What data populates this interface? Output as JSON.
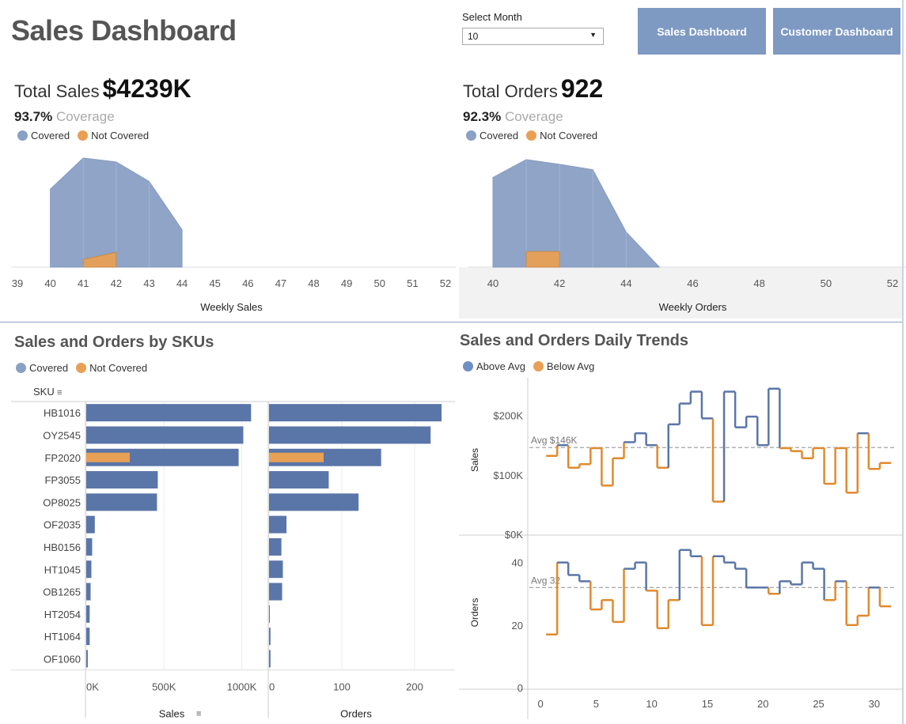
{
  "header": {
    "title": "Sales Dashboard",
    "select_label": "Select Month",
    "select_value": "10",
    "nav_sales": "Sales Dashboard",
    "nav_customer": "Customer Dashboard"
  },
  "colors": {
    "covered": "#8aa0c4",
    "not_covered": "#e8a055",
    "bar": "#5a76a8",
    "above": "#5a76a8",
    "below": "#e08a2e"
  },
  "sales_kpi": {
    "label": "Total Sales",
    "value": "$4239K",
    "coverage_pct": "93.7%",
    "coverage_word": "Coverage"
  },
  "orders_kpi": {
    "label": "Total Orders",
    "value": "922",
    "coverage_pct": "92.3%",
    "coverage_word": "Coverage"
  },
  "legend": {
    "covered": "Covered",
    "not_covered": "Not Covered",
    "above": "Above Avg",
    "below": "Below Avg"
  },
  "sku_title": "Sales and Orders by SKUs",
  "trend_title": "Sales and Orders Daily Trends",
  "chart_data": [
    {
      "type": "area",
      "xlabel": "Weekly Sales",
      "xlim": [
        39,
        52
      ],
      "xticks": [
        "39",
        "40",
        "41",
        "42",
        "43",
        "44",
        "45",
        "46",
        "47",
        "48",
        "49",
        "50",
        "51",
        "52"
      ],
      "series": [
        {
          "name": "Covered",
          "x": [
            40,
            41,
            42,
            43,
            44
          ],
          "values": [
            100,
            140,
            135,
            110,
            48
          ]
        },
        {
          "name": "Not Covered",
          "x": [
            41,
            42
          ],
          "values": [
            10,
            19
          ]
        }
      ]
    },
    {
      "type": "area",
      "xlabel": "Weekly Orders",
      "xlim": [
        40,
        52
      ],
      "xticks": [
        "40",
        "42",
        "44",
        "46",
        "48",
        "50",
        "52"
      ],
      "series": [
        {
          "name": "Covered",
          "x": [
            40,
            41,
            42,
            43,
            44,
            45
          ],
          "values": [
            115,
            138,
            132,
            125,
            45,
            0
          ]
        },
        {
          "name": "Not Covered",
          "x": [
            41,
            42
          ],
          "values": [
            20,
            20
          ]
        }
      ]
    },
    {
      "type": "bar",
      "categories": [
        "HB1016",
        "OY2545",
        "FP2020",
        "FP3055",
        "OP8025",
        "OF2035",
        "HB0156",
        "HT1045",
        "OB1265",
        "HT2054",
        "HT1064",
        "OF1060"
      ],
      "header": "SKU",
      "panels": [
        {
          "xlabel": "Sales",
          "xlim": [
            0,
            1150
          ],
          "xticks": [
            "0K",
            "500K",
            "1000K"
          ],
          "xtick_values": [
            0,
            500,
            1000
          ],
          "covered": [
            1060,
            1010,
            980,
            460,
            455,
            55,
            38,
            33,
            28,
            22,
            22,
            10
          ],
          "not_covered": [
            0,
            0,
            280,
            0,
            0,
            0,
            0,
            0,
            0,
            0,
            0,
            0
          ]
        },
        {
          "xlabel": "Orders",
          "xlim": [
            0,
            250
          ],
          "xticks": [
            "0",
            "100",
            "200"
          ],
          "xtick_values": [
            0,
            100,
            200
          ],
          "covered": [
            237,
            222,
            154,
            82,
            123,
            24,
            17,
            19,
            18,
            1,
            2,
            2
          ],
          "not_covered": [
            0,
            0,
            75,
            0,
            0,
            0,
            0,
            0,
            0,
            0,
            0,
            0
          ]
        }
      ]
    },
    {
      "type": "line",
      "xlim": [
        -1,
        32
      ],
      "xticks": [
        "0",
        "5",
        "10",
        "15",
        "20",
        "25",
        "30"
      ],
      "xtick_values": [
        0,
        5,
        10,
        15,
        20,
        25,
        30
      ],
      "panels": [
        {
          "ylabel": "Sales",
          "ylim": [
            0,
            250
          ],
          "yticks": [
            "$0K",
            "$100K",
            "$200K"
          ],
          "ytick_values": [
            0,
            100,
            200
          ],
          "avg": 146,
          "avg_label": "Avg $146K",
          "x": [
            1,
            2,
            3,
            4,
            5,
            6,
            7,
            8,
            9,
            10,
            11,
            12,
            13,
            14,
            15,
            16,
            17,
            18,
            19,
            20,
            21,
            22,
            23,
            24,
            25,
            26,
            27,
            28,
            29,
            30,
            31
          ],
          "values": [
            132,
            150,
            112,
            118,
            145,
            82,
            128,
            155,
            170,
            150,
            112,
            185,
            220,
            240,
            195,
            55,
            240,
            180,
            198,
            150,
            245,
            145,
            140,
            128,
            145,
            85,
            145,
            70,
            170,
            110,
            120
          ]
        },
        {
          "ylabel": "Orders",
          "ylim": [
            0,
            48
          ],
          "yticks": [
            "0",
            "20",
            "40"
          ],
          "ytick_values": [
            0,
            20,
            40
          ],
          "avg": 32,
          "avg_label": "Avg 32",
          "x": [
            1,
            2,
            3,
            4,
            5,
            6,
            7,
            8,
            9,
            10,
            11,
            12,
            13,
            14,
            15,
            16,
            17,
            18,
            19,
            20,
            21,
            22,
            23,
            24,
            25,
            26,
            27,
            28,
            29,
            30,
            31
          ],
          "values": [
            17,
            40,
            36,
            34,
            25,
            28,
            21,
            38,
            40,
            31,
            19,
            28,
            44,
            42,
            20,
            42,
            40,
            38,
            32,
            32,
            30,
            34,
            33,
            40,
            38,
            28,
            34,
            20,
            23,
            32,
            26
          ]
        }
      ]
    }
  ]
}
